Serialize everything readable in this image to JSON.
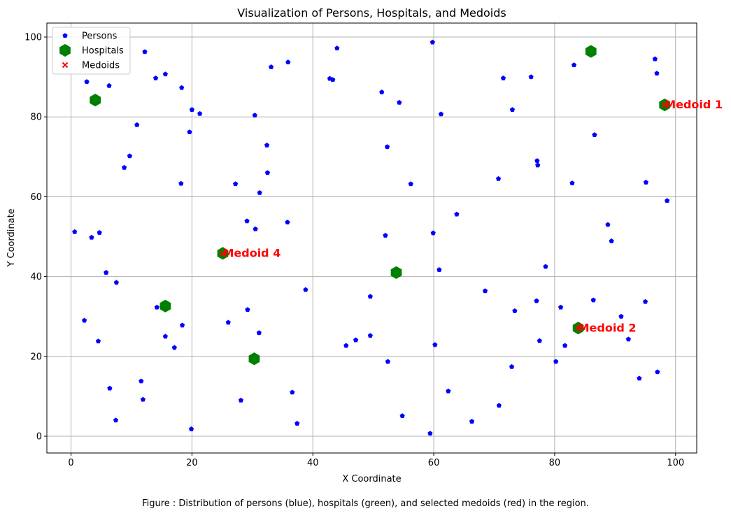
{
  "chart_data": {
    "type": "scatter",
    "title": "Visualization of Persons, Hospitals, and Medoids",
    "xlabel": "X Coordinate",
    "ylabel": "Y Coordinate",
    "xlim": [
      -4,
      103.5
    ],
    "ylim": [
      -4.2,
      103.5
    ],
    "xticks": [
      0,
      20,
      40,
      60,
      80,
      100
    ],
    "yticks": [
      0,
      20,
      40,
      60,
      80,
      100
    ],
    "grid": true,
    "legend_position": "upper-left",
    "series": [
      {
        "name": "Persons",
        "marker": "pentagon",
        "color": "#0000ff",
        "points": [
          [
            0.6,
            51.2
          ],
          [
            2.2,
            29
          ],
          [
            2.6,
            88.8
          ],
          [
            3.4,
            49.8
          ],
          [
            4.5,
            23.8
          ],
          [
            4.7,
            51
          ],
          [
            5.8,
            41
          ],
          [
            6.3,
            87.8
          ],
          [
            6.4,
            12
          ],
          [
            7.4,
            4
          ],
          [
            7.5,
            38.5
          ],
          [
            8.8,
            67.3
          ],
          [
            9.7,
            70.2
          ],
          [
            10.9,
            78
          ],
          [
            11.6,
            13.8
          ],
          [
            11.9,
            9.2
          ],
          [
            12.2,
            96.3
          ],
          [
            14,
            89.7
          ],
          [
            14.2,
            32.3
          ],
          [
            15.6,
            25
          ],
          [
            15.6,
            90.7
          ],
          [
            17.1,
            22.2
          ],
          [
            18.2,
            63.3
          ],
          [
            18.3,
            87.3
          ],
          [
            18.4,
            27.8
          ],
          [
            19.6,
            76.2
          ],
          [
            19.9,
            1.8
          ],
          [
            20,
            81.8
          ],
          [
            21.3,
            80.8
          ],
          [
            26,
            28.5
          ],
          [
            27.2,
            63.2
          ],
          [
            28.1,
            9
          ],
          [
            29.1,
            53.9
          ],
          [
            29.2,
            31.7
          ],
          [
            30.4,
            80.4
          ],
          [
            30.5,
            51.9
          ],
          [
            31.1,
            25.9
          ],
          [
            31.2,
            61
          ],
          [
            32.4,
            72.9
          ],
          [
            32.5,
            66
          ],
          [
            33.1,
            92.5
          ],
          [
            35.8,
            53.6
          ],
          [
            35.9,
            93.7
          ],
          [
            36.6,
            11
          ],
          [
            37.4,
            3.2
          ],
          [
            38.8,
            36.7
          ],
          [
            42.8,
            89.6
          ],
          [
            43.3,
            89.3
          ],
          [
            44,
            97.2
          ],
          [
            45.5,
            22.7
          ],
          [
            47.1,
            24.1
          ],
          [
            49.5,
            35
          ],
          [
            49.5,
            25.2
          ],
          [
            51.4,
            86.2
          ],
          [
            52,
            50.3
          ],
          [
            52.3,
            72.5
          ],
          [
            52.4,
            18.7
          ],
          [
            54.3,
            83.6
          ],
          [
            54.8,
            5.1
          ],
          [
            56.2,
            63.2
          ],
          [
            59.4,
            0.7
          ],
          [
            59.8,
            98.7
          ],
          [
            59.9,
            50.9
          ],
          [
            60.2,
            22.9
          ],
          [
            60.9,
            41.7
          ],
          [
            61.2,
            80.7
          ],
          [
            62.4,
            11.3
          ],
          [
            63.8,
            55.6
          ],
          [
            66.3,
            3.7
          ],
          [
            68.5,
            36.4
          ],
          [
            70.7,
            64.5
          ],
          [
            70.8,
            7.7
          ],
          [
            71.5,
            89.7
          ],
          [
            72.9,
            17.4
          ],
          [
            73,
            81.8
          ],
          [
            73.4,
            31.4
          ],
          [
            76.1,
            90
          ],
          [
            77,
            33.9
          ],
          [
            77.1,
            69
          ],
          [
            77.2,
            67.9
          ],
          [
            77.5,
            23.9
          ],
          [
            78.5,
            42.5
          ],
          [
            80.2,
            18.7
          ],
          [
            81,
            32.3
          ],
          [
            81.7,
            22.7
          ],
          [
            82.9,
            63.4
          ],
          [
            83.2,
            93
          ],
          [
            86.4,
            34.1
          ],
          [
            86.6,
            75.5
          ],
          [
            88.8,
            53
          ],
          [
            89.4,
            48.9
          ],
          [
            91,
            30
          ],
          [
            92.2,
            24.3
          ],
          [
            94,
            14.5
          ],
          [
            95,
            33.7
          ],
          [
            95.1,
            63.6
          ],
          [
            96.6,
            94.5
          ],
          [
            96.9,
            90.9
          ],
          [
            97,
            16.1
          ],
          [
            98.6,
            59
          ]
        ]
      },
      {
        "name": "Hospitals",
        "marker": "hexagon",
        "color": "#008000",
        "points": [
          [
            4,
            84.2
          ],
          [
            15.6,
            32.6
          ],
          [
            25.1,
            45.8
          ],
          [
            30.3,
            19.4
          ],
          [
            53.8,
            41
          ],
          [
            83.9,
            27.1
          ],
          [
            86,
            96.4
          ],
          [
            98.2,
            83
          ]
        ]
      },
      {
        "name": "Medoids",
        "marker": "x",
        "color": "#ff0000",
        "points": [
          [
            98.2,
            83
          ],
          [
            83.9,
            27.1
          ],
          [
            25.1,
            45.8
          ]
        ]
      }
    ],
    "annotations": [
      {
        "text": "Medoid 1",
        "x": 98.2,
        "y": 83
      },
      {
        "text": "Medoid 2",
        "x": 83.9,
        "y": 27.1
      },
      {
        "text": "Medoid 4",
        "x": 25.1,
        "y": 45.8
      }
    ]
  },
  "caption": "Figure : Distribution of persons (blue), hospitals (green), and selected medoids (red) in the region."
}
